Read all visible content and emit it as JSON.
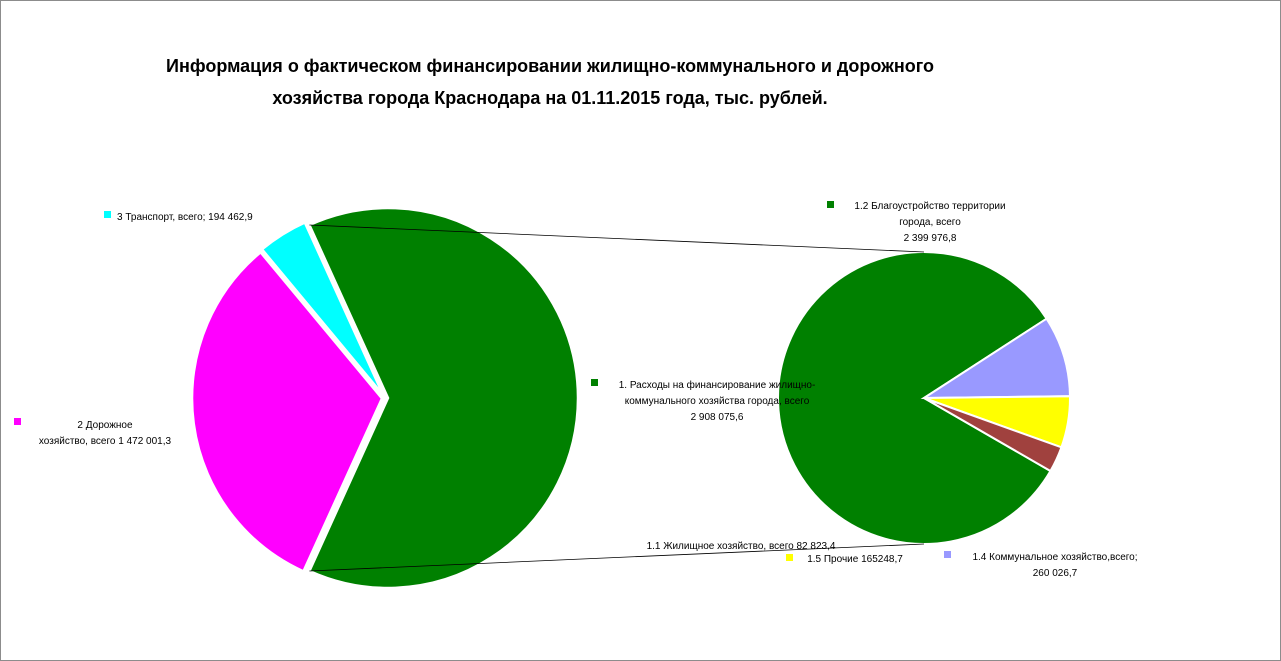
{
  "chart_data": [
    {
      "type": "pie",
      "title_lines": [
        "Информация о фактическом финансировании жилищно-коммунального и дорожного",
        "хозяйства города Краснодара на 01.11.2015 года, тыс. рублей."
      ],
      "slices": [
        {
          "name": "1. Расходы на финансирование жилищно-коммунального хозяйства города, всего",
          "value": 2908075.6,
          "label_lines": [
            "1. Расходы на финансирование жилищно-",
            "коммунального  хозяйства города, всего",
            "2 908 075,6"
          ],
          "color": "#008000",
          "exploded": true
        },
        {
          "name": "2 Дорожное хозяйство, всего",
          "value": 1472001.3,
          "label_lines": [
            "2 Дорожное",
            "хозяйство, всего 1 472 001,3"
          ],
          "color": "#ff00ff"
        },
        {
          "name": "3 Транспорт, всего",
          "value": 194462.9,
          "label_lines": [
            "3 Транспорт, всего; 194 462,9"
          ],
          "color": "#00ffff"
        }
      ]
    },
    {
      "type": "pie",
      "breakout_of": "1. Расходы на финансирование жилищно-коммунального хозяйства города, всего",
      "slices": [
        {
          "name": "1.2 Благоустройство территории города, всего",
          "value": 2399976.8,
          "label_lines": [
            "1.2 Благоустройство территории",
            "города, всего",
            "2 399 976,8"
          ],
          "color": "#008000"
        },
        {
          "name": "1.4 Коммунальное хозяйство,всего",
          "value": 260026.7,
          "label_lines": [
            "1.4 Коммунальное хозяйство,всего;",
            "260 026,7"
          ],
          "color": "#9999ff"
        },
        {
          "name": "1.5 Прочие",
          "value": 165248.7,
          "label_lines": [
            "1.5 Прочие 165248,7"
          ],
          "color": "#ffff00"
        },
        {
          "name": "1.1 Жилищное хозяйство, всего",
          "value": 82823.4,
          "label_lines": [
            "1.1 Жилищное хозяйство, всего 82 823,4"
          ],
          "color": "#a0413e"
        }
      ]
    }
  ]
}
